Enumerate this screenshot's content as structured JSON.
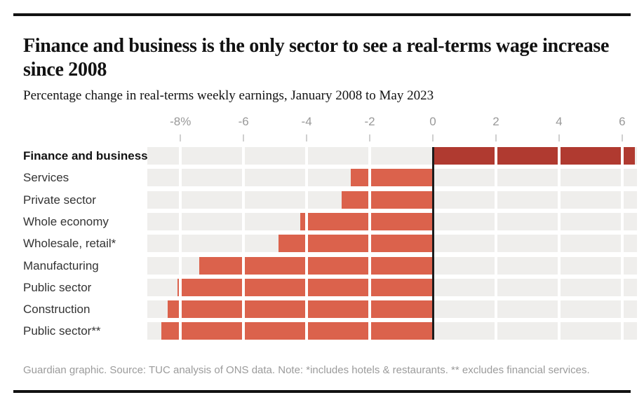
{
  "header": {
    "title": "Finance and business is the only sector to see a real-terms wage increase since 2008",
    "subtitle": "Percentage change in real-terms weekly earnings, January 2008 to May 2023"
  },
  "chart_data": {
    "type": "bar",
    "orientation": "horizontal",
    "title": "Finance and business is the only sector to see a real-terms wage increase since 2008",
    "subtitle": "Percentage change in real-terms weekly earnings, January 2008 to May 2023",
    "categories": [
      "Finance and business",
      "Services",
      "Private sector",
      "Whole economy",
      "Wholesale, retail*",
      "Manufacturing",
      "Public sector",
      "Construction",
      "Public sector**"
    ],
    "values": [
      6.4,
      -2.6,
      -2.9,
      -4.2,
      -4.9,
      -7.4,
      -8.1,
      -8.4,
      -8.6
    ],
    "unit": "%",
    "emphasized_category": "Finance and business",
    "x_ticks": [
      {
        "value": -8,
        "label": "-8%"
      },
      {
        "value": -6,
        "label": "-6"
      },
      {
        "value": -4,
        "label": "-4"
      },
      {
        "value": -2,
        "label": "-2"
      },
      {
        "value": 0,
        "label": "0"
      },
      {
        "value": 2,
        "label": "2"
      },
      {
        "value": 4,
        "label": "4"
      },
      {
        "value": 6,
        "label": "6"
      }
    ],
    "xlim": [
      -9.05,
      6.47
    ],
    "grid": "vertical-white-gaps",
    "legend": "none",
    "colors": {
      "positive_bar": "#b03a30",
      "negative_bar": "#db624c",
      "row_background": "#efeeec",
      "zero_line": "#1c1c1c",
      "gridline": "#ffffff",
      "tick_mark": "#cfcfcf",
      "axis_label": "#999999",
      "rule": "#121212"
    }
  },
  "footer": {
    "note": "Guardian graphic. Source: TUC analysis of ONS data. Note: *includes hotels & restaurants. ** excludes financial services."
  }
}
